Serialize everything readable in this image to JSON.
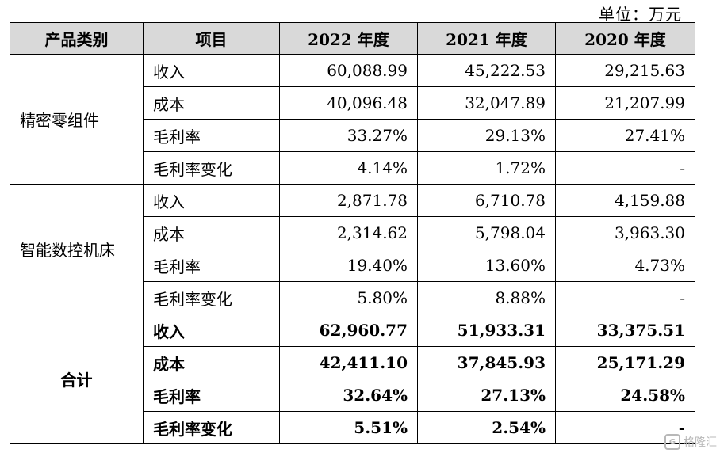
{
  "unit_label": "单位：万元",
  "headers": [
    "产品类别",
    "项目",
    "2022 年度",
    "2021 年度",
    "2020 年度"
  ],
  "groups": [
    {
      "category": "精密零组件",
      "bold": false,
      "rows": [
        {
          "item": "收入",
          "values": [
            "60,088.99",
            "45,222.53",
            "29,215.63"
          ]
        },
        {
          "item": "成本",
          "values": [
            "40,096.48",
            "32,047.89",
            "21,207.99"
          ]
        },
        {
          "item": "毛利率",
          "values": [
            "33.27%",
            "29.13%",
            "27.41%"
          ]
        },
        {
          "item": "毛利率变化",
          "values": [
            "4.14%",
            "1.72%",
            "-"
          ]
        }
      ]
    },
    {
      "category": "智能数控机床",
      "bold": false,
      "rows": [
        {
          "item": "收入",
          "values": [
            "2,871.78",
            "6,710.78",
            "4,159.88"
          ]
        },
        {
          "item": "成本",
          "values": [
            "2,314.62",
            "5,798.04",
            "3,963.30"
          ]
        },
        {
          "item": "毛利率",
          "values": [
            "19.40%",
            "13.60%",
            "4.73%"
          ]
        },
        {
          "item": "毛利率变化",
          "values": [
            "5.80%",
            "8.88%",
            "-"
          ]
        }
      ]
    },
    {
      "category": "合计",
      "bold": true,
      "rows": [
        {
          "item": "收入",
          "values": [
            "62,960.77",
            "51,933.31",
            "33,375.51"
          ]
        },
        {
          "item": "成本",
          "values": [
            "42,411.10",
            "37,845.93",
            "25,171.29"
          ]
        },
        {
          "item": "毛利率",
          "values": [
            "32.64%",
            "27.13%",
            "24.58%"
          ]
        },
        {
          "item": "毛利率变化",
          "values": [
            "5.51%",
            "2.54%",
            "-"
          ]
        }
      ]
    }
  ],
  "watermark": {
    "icon": "gelonghui-logo-icon",
    "text": "格隆汇"
  }
}
